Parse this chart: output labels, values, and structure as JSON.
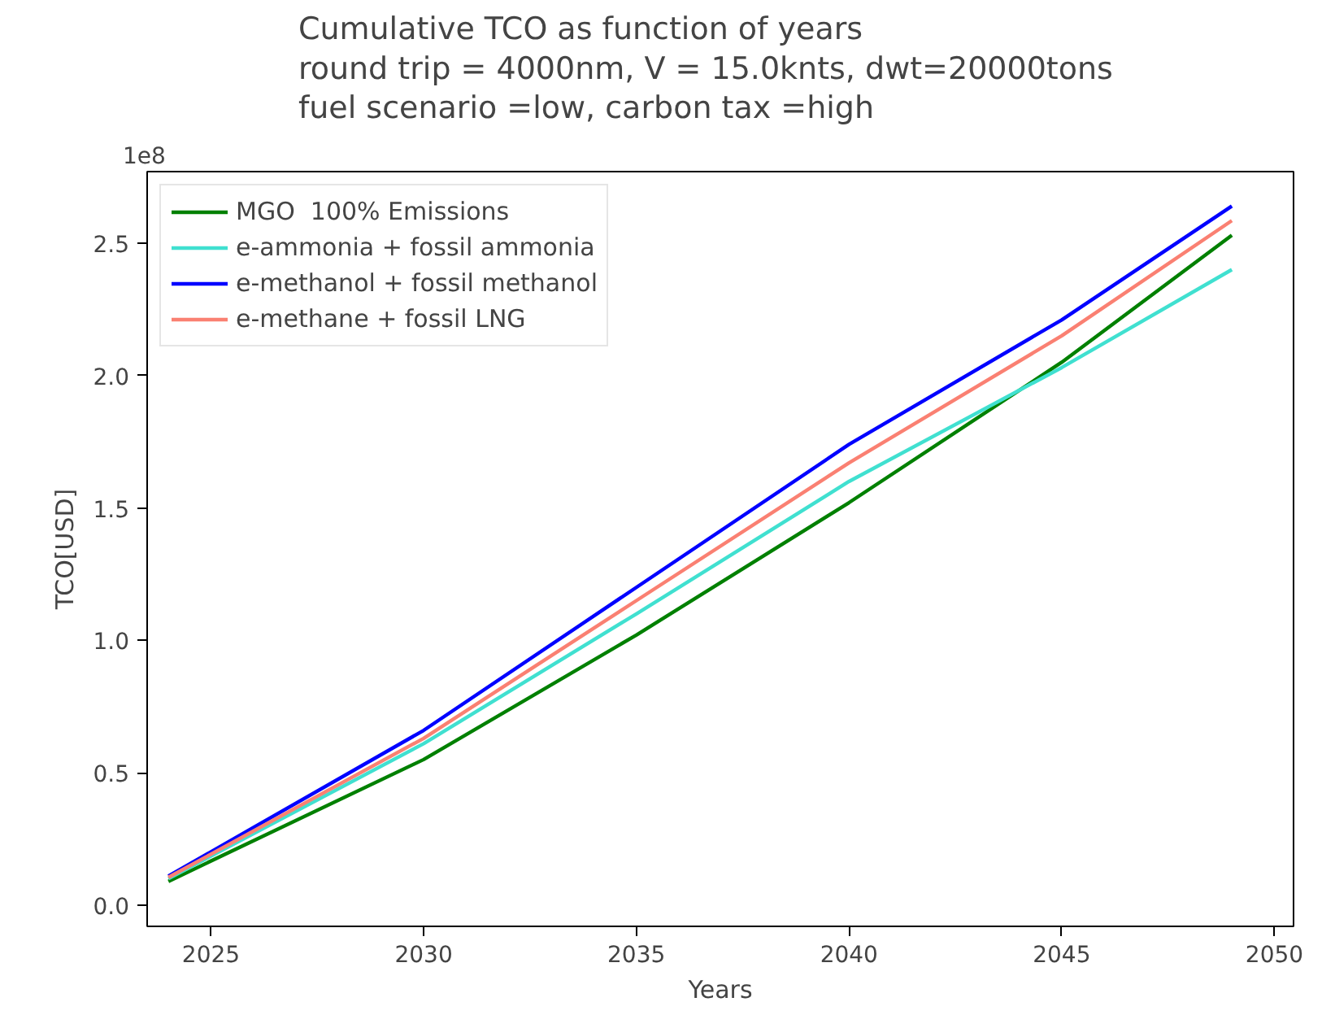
{
  "chart_data": {
    "type": "line",
    "title": "Cumulative TCO as function of years\nround trip = 4000nm,    V = 15.0knts, dwt=20000tons\nfuel scenario =low, carbon tax =high",
    "xlabel": "Years",
    "ylabel": "TCO[USD]",
    "annotations": [
      "1e8"
    ],
    "x": [
      2024,
      2030,
      2035,
      2040,
      2045,
      2049
    ],
    "series": [
      {
        "name": "MGO  100% Emissions",
        "color": "#008000",
        "values": [
          0.09,
          0.55,
          1.02,
          1.52,
          2.05,
          2.53
        ]
      },
      {
        "name": "e-ammonia + fossil ammonia",
        "color": "#40e0d0",
        "values": [
          0.1,
          0.61,
          1.1,
          1.6,
          2.03,
          2.4
        ]
      },
      {
        "name": "e-methanol + fossil methanol",
        "color": "#0000ff",
        "values": [
          0.11,
          0.66,
          1.2,
          1.74,
          2.21,
          2.64
        ]
      },
      {
        "name": "e-methane + fossil LNG",
        "color": "#fa8072",
        "values": [
          0.105,
          0.63,
          1.15,
          1.67,
          2.15,
          2.585
        ]
      }
    ],
    "xlim": [
      2023.5,
      2050.45
    ],
    "ylim": [
      -0.08,
      2.77
    ],
    "xticks": [
      2025,
      2030,
      2035,
      2040,
      2045,
      2050
    ],
    "yticks": [
      {
        "value": 0,
        "label": "0.0"
      },
      0.5,
      {
        "value": 1,
        "label": "1.0"
      },
      1.5,
      {
        "value": 2,
        "label": "2.0"
      },
      2.5
    ],
    "grid": false,
    "legend": "top left",
    "marker": "none",
    "line_style": "solid"
  }
}
